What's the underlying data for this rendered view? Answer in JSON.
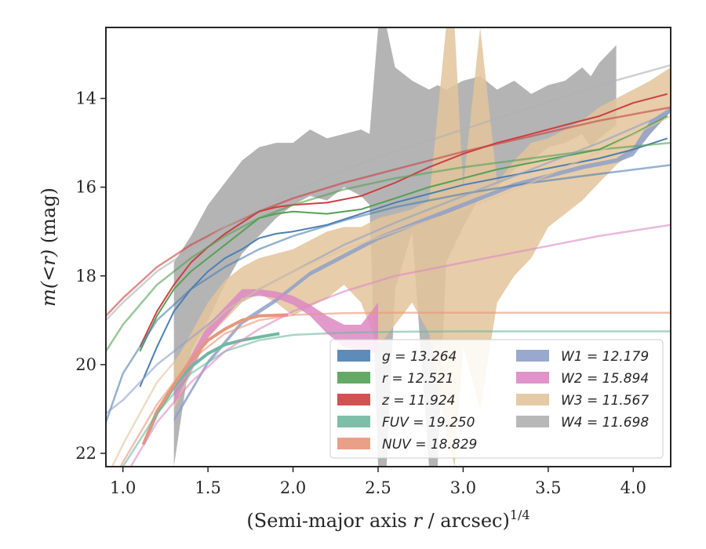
{
  "chart_data": {
    "type": "line",
    "xlabel": "(Semi-major axis r / arcsec)^1/4",
    "xlabel_parts": {
      "main": "(Semi-major axis ",
      "var": "r",
      "mid": " / arcsec)",
      "sup": "1/4"
    },
    "ylabel": "m(<r) (mag)",
    "xlim": [
      0.9,
      4.22
    ],
    "ylim": [
      22.3,
      12.4
    ],
    "y_inverted": true,
    "xticks": [
      "1.0",
      "1.5",
      "2.0",
      "2.5",
      "3.0",
      "3.5",
      "4.0"
    ],
    "yticks": [
      "14",
      "16",
      "18",
      "20",
      "22"
    ],
    "legend_position": "lower-right",
    "legend_columns": 2,
    "series": [
      {
        "name": "g = 13.264",
        "key": "g",
        "color": "#4c7fb0",
        "kind": "line",
        "x": [
          1.1,
          1.2,
          1.3,
          1.4,
          1.5,
          1.6,
          1.7,
          1.8,
          1.9,
          2.0,
          2.2,
          2.4,
          2.6,
          2.8,
          3.0,
          3.2,
          3.4,
          3.6,
          3.8,
          4.0,
          4.2
        ],
        "y": [
          20.5,
          19.6,
          18.8,
          18.3,
          17.9,
          17.6,
          17.4,
          17.15,
          17.05,
          17.0,
          16.85,
          16.6,
          16.35,
          16.15,
          15.95,
          15.8,
          15.65,
          15.5,
          15.35,
          15.15,
          14.9
        ],
        "fit_x": [
          0.9,
          1.0,
          1.2,
          1.4,
          1.6,
          1.8,
          2.0,
          2.3,
          2.6,
          3.0,
          3.4,
          3.8,
          4.22
        ],
        "fit_y": [
          21.3,
          20.2,
          19.0,
          18.3,
          17.8,
          17.4,
          17.1,
          16.75,
          16.45,
          16.15,
          15.9,
          15.7,
          15.5
        ]
      },
      {
        "name": "r = 12.521",
        "key": "r",
        "color": "#55a055",
        "kind": "line",
        "x": [
          1.1,
          1.2,
          1.3,
          1.4,
          1.5,
          1.6,
          1.7,
          1.8,
          1.9,
          2.0,
          2.2,
          2.4,
          2.6,
          2.8,
          3.0,
          3.2,
          3.4,
          3.6,
          3.8,
          4.0,
          4.2
        ],
        "y": [
          19.7,
          18.9,
          18.3,
          17.9,
          17.6,
          17.3,
          17.0,
          16.7,
          16.6,
          16.55,
          16.6,
          16.5,
          16.25,
          16.0,
          15.8,
          15.6,
          15.45,
          15.3,
          15.15,
          14.8,
          14.4
        ],
        "fit_x": [
          0.9,
          1.0,
          1.2,
          1.4,
          1.6,
          1.8,
          2.0,
          2.3,
          2.6,
          3.0,
          3.4,
          3.8,
          4.22
        ],
        "fit_y": [
          19.7,
          19.1,
          18.2,
          17.6,
          17.1,
          16.7,
          16.4,
          16.05,
          15.8,
          15.55,
          15.35,
          15.15,
          15.0
        ]
      },
      {
        "name": "z = 11.924",
        "key": "z",
        "color": "#cc3f3f",
        "kind": "line",
        "x": [
          1.1,
          1.2,
          1.3,
          1.4,
          1.5,
          1.6,
          1.7,
          1.8,
          1.9,
          2.0,
          2.2,
          2.4,
          2.6,
          2.8,
          3.0,
          3.2,
          3.4,
          3.6,
          3.8,
          4.0,
          4.2
        ],
        "y": [
          19.6,
          18.8,
          18.2,
          17.7,
          17.35,
          17.05,
          16.8,
          16.55,
          16.45,
          16.4,
          16.35,
          16.2,
          15.9,
          15.55,
          15.25,
          15.0,
          14.8,
          14.6,
          14.4,
          14.1,
          13.9
        ],
        "fit_x": [
          0.9,
          1.0,
          1.2,
          1.4,
          1.6,
          1.8,
          2.0,
          2.3,
          2.6,
          3.0,
          3.4,
          3.8,
          4.22
        ],
        "fit_y": [
          18.9,
          18.5,
          17.8,
          17.3,
          16.9,
          16.55,
          16.25,
          15.9,
          15.6,
          15.2,
          14.85,
          14.5,
          14.2
        ]
      },
      {
        "name": "FUV = 19.250",
        "key": "FUV",
        "color": "#6fb8a0",
        "kind": "line",
        "x": [
          1.12,
          1.2,
          1.3,
          1.4,
          1.5,
          1.6,
          1.7,
          1.8,
          1.92
        ],
        "y": [
          21.8,
          21.1,
          20.5,
          20.05,
          19.75,
          19.55,
          19.45,
          19.38,
          19.3
        ],
        "fit_x": [
          0.9,
          1.0,
          1.2,
          1.4,
          1.6,
          1.8,
          2.0,
          2.3,
          2.6,
          3.0,
          3.4,
          3.8,
          4.22
        ],
        "fit_y": [
          23.0,
          22.3,
          21.1,
          20.2,
          19.7,
          19.45,
          19.33,
          19.28,
          19.26,
          19.25,
          19.25,
          19.25,
          19.25
        ]
      },
      {
        "name": "NUV = 18.829",
        "key": "NUV",
        "color": "#e8967a",
        "kind": "line",
        "x": [
          1.12,
          1.2,
          1.3,
          1.4,
          1.5,
          1.6,
          1.7,
          1.8,
          1.97
        ],
        "y": [
          21.8,
          21.05,
          20.45,
          19.9,
          19.45,
          19.2,
          19.0,
          18.9,
          18.88
        ],
        "fit_x": [
          0.9,
          1.0,
          1.2,
          1.4,
          1.6,
          1.8,
          2.0,
          2.3,
          2.6,
          3.0,
          3.4,
          3.8,
          4.22
        ],
        "fit_y": [
          23.0,
          22.2,
          20.9,
          19.9,
          19.3,
          19.0,
          18.88,
          18.84,
          18.83,
          18.83,
          18.83,
          18.83,
          18.83
        ]
      },
      {
        "name": "W1 = 12.179",
        "key": "W1",
        "color": "#8ea0c9",
        "kind": "band",
        "x": [
          1.3,
          1.5,
          1.7,
          1.9,
          2.1,
          2.3,
          2.5,
          2.7,
          2.9,
          3.1,
          3.3,
          3.5,
          3.7,
          3.9,
          4.0,
          4.1,
          4.22
        ],
        "y_low": [
          21.3,
          20.0,
          19.1,
          18.6,
          18.0,
          17.6,
          17.2,
          16.9,
          16.6,
          16.3,
          16.0,
          15.8,
          15.6,
          15.45,
          15.3,
          14.8,
          14.3
        ],
        "y_high": [
          21.2,
          19.9,
          19.0,
          18.5,
          17.9,
          17.5,
          17.1,
          16.8,
          16.5,
          16.2,
          15.9,
          15.7,
          15.5,
          15.35,
          15.1,
          14.5,
          14.2
        ],
        "fit_x": [
          0.9,
          1.0,
          1.2,
          1.4,
          1.6,
          1.8,
          2.0,
          2.3,
          2.6,
          3.0,
          3.4,
          3.8,
          4.22
        ],
        "fit_y": [
          21.1,
          20.8,
          20.0,
          19.4,
          18.8,
          18.3,
          17.9,
          17.3,
          16.8,
          16.2,
          15.6,
          15.0,
          14.3
        ]
      },
      {
        "name": "W2 = 15.894",
        "key": "W2",
        "color": "#dd88c4",
        "kind": "band",
        "x": [
          1.3,
          1.5,
          1.7,
          1.8,
          1.9,
          2.0,
          2.1,
          2.2,
          2.3,
          2.4,
          2.5
        ],
        "y_low": [
          20.9,
          19.4,
          18.5,
          18.45,
          18.5,
          18.65,
          18.9,
          19.3,
          19.6,
          19.7,
          19.75
        ],
        "y_high": [
          20.5,
          19.1,
          18.3,
          18.3,
          18.35,
          18.45,
          18.65,
          18.9,
          19.1,
          19.1,
          18.6
        ],
        "fit_x": [
          0.9,
          1.0,
          1.2,
          1.4,
          1.6,
          1.8,
          2.0,
          2.3,
          2.6,
          3.0,
          3.4,
          3.8,
          4.22
        ],
        "fit_y": [
          23.5,
          22.6,
          21.3,
          20.4,
          19.7,
          19.2,
          18.8,
          18.35,
          18.0,
          17.7,
          17.4,
          17.1,
          16.85
        ]
      },
      {
        "name": "W3 = 11.567",
        "key": "W3",
        "color": "#e3c49b",
        "kind": "band",
        "x": [
          1.3,
          1.4,
          1.5,
          1.6,
          1.7,
          1.8,
          1.9,
          2.0,
          2.1,
          2.2,
          2.3,
          2.4,
          2.5,
          2.6,
          2.7,
          2.8,
          2.9,
          2.95,
          3.0,
          3.1,
          3.2,
          3.3,
          3.4,
          3.5,
          3.6,
          3.7,
          3.8,
          3.9,
          4.0,
          4.1,
          4.22
        ],
        "y_low": [
          21.0,
          20.2,
          19.4,
          19.0,
          18.6,
          18.4,
          18.6,
          18.9,
          18.7,
          18.5,
          18.2,
          18.6,
          19.6,
          19.1,
          18.6,
          19.3,
          21.5,
          22.3,
          19.6,
          21.0,
          18.6,
          18.0,
          17.6,
          16.9,
          16.6,
          16.3,
          15.9,
          15.5,
          15.2,
          14.8,
          14.3
        ],
        "y_high": [
          20.0,
          19.3,
          18.6,
          18.1,
          17.8,
          17.6,
          17.5,
          17.4,
          17.2,
          17.0,
          16.9,
          16.9,
          16.7,
          16.6,
          16.5,
          16.3,
          12.4,
          12.4,
          16.0,
          12.4,
          15.9,
          15.4,
          15.0,
          14.9,
          14.7,
          14.5,
          14.2,
          14.0,
          13.8,
          13.6,
          13.3
        ],
        "fit_x": [
          0.9,
          1.0,
          1.2,
          1.4,
          1.6,
          1.8,
          2.0,
          2.3,
          2.6,
          3.0,
          3.4,
          3.8,
          4.22
        ],
        "fit_y": [
          22.6,
          21.8,
          20.4,
          19.5,
          18.8,
          18.3,
          17.9,
          17.4,
          17.0,
          16.5,
          15.9,
          15.2,
          14.4
        ]
      },
      {
        "name": "W4 = 11.698",
        "key": "W4",
        "color": "#b0b0b0",
        "kind": "band",
        "x": [
          1.3,
          1.4,
          1.5,
          1.6,
          1.7,
          1.8,
          1.9,
          2.0,
          2.1,
          2.2,
          2.3,
          2.4,
          2.45,
          2.5,
          2.55,
          2.6,
          2.7,
          2.8,
          2.85,
          2.9,
          3.0,
          3.1,
          3.2,
          3.3,
          3.4,
          3.5,
          3.6,
          3.7,
          3.75,
          3.8,
          3.9
        ],
        "y_low": [
          22.3,
          19.7,
          19.0,
          18.2,
          17.5,
          17.1,
          16.7,
          16.4,
          16.2,
          16.3,
          16.0,
          16.2,
          16.4,
          22.3,
          22.3,
          18.3,
          17.0,
          22.3,
          22.3,
          17.7,
          16.9,
          16.2,
          16.0,
          15.6,
          15.4,
          15.1,
          15.0,
          14.8,
          15.1,
          14.9,
          14.6
        ],
        "y_high": [
          17.7,
          17.1,
          16.4,
          15.9,
          15.4,
          15.1,
          15.0,
          15.0,
          14.7,
          14.9,
          14.8,
          14.7,
          14.8,
          12.4,
          12.4,
          13.3,
          13.6,
          13.8,
          13.7,
          13.8,
          13.6,
          13.5,
          13.8,
          13.6,
          13.9,
          13.7,
          13.6,
          13.3,
          13.5,
          13.2,
          12.8
        ],
        "fit_x": [
          0.9,
          1.0,
          1.2,
          1.4,
          1.6,
          1.8,
          2.0,
          2.3,
          2.6,
          3.0,
          3.4,
          3.8,
          4.22
        ],
        "fit_y": [
          19.0,
          18.6,
          17.9,
          17.4,
          16.9,
          16.5,
          16.1,
          15.6,
          15.2,
          14.7,
          14.2,
          13.7,
          13.25
        ]
      }
    ]
  }
}
